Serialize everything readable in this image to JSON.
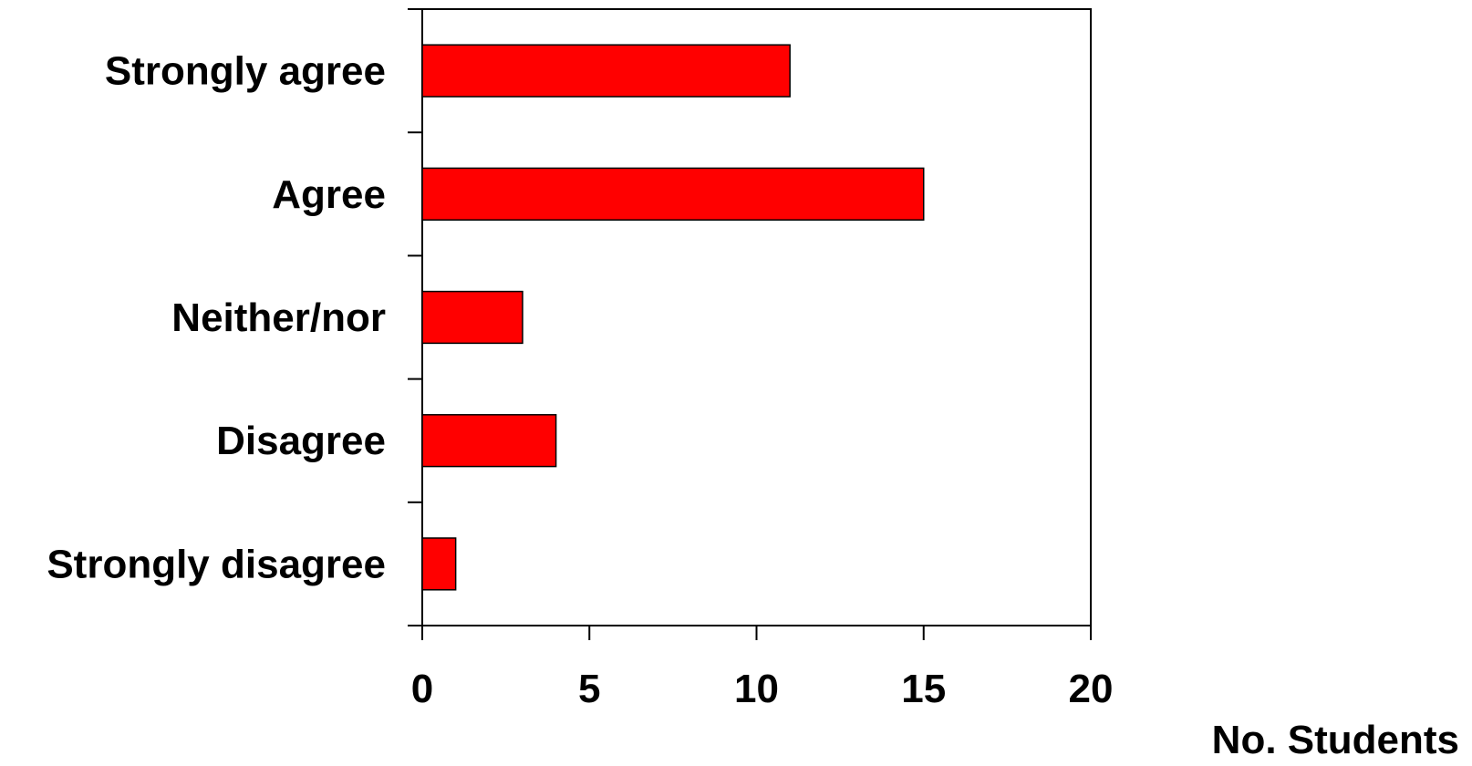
{
  "chart_data": {
    "type": "bar",
    "orientation": "horizontal",
    "categories": [
      "Strongly agree",
      "Agree",
      "Neither/nor",
      "Disagree",
      "Strongly disagree"
    ],
    "values": [
      11,
      15,
      3,
      4,
      1
    ],
    "xlabel": "No. Students",
    "ylabel": "",
    "xlim": [
      0,
      20
    ],
    "xticks": [
      "0",
      "5",
      "10",
      "15",
      "20"
    ],
    "grid": false,
    "legend": false,
    "bar_color": "#ff0000",
    "bar_edge_color": "#000000"
  }
}
